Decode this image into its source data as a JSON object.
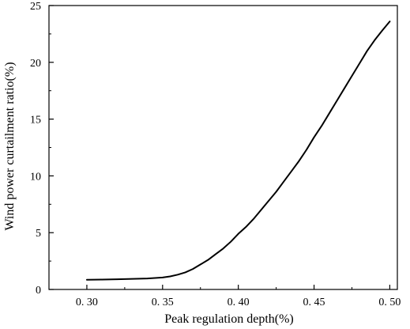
{
  "chart_data": {
    "type": "line",
    "title": "",
    "xlabel": "Peak regulation depth(%)",
    "ylabel": "Wind power curtailment ratio(%)",
    "xlim": [
      0.275,
      0.505
    ],
    "ylim": [
      0,
      25
    ],
    "xticks": [
      0.3,
      0.35,
      0.4,
      0.45,
      0.5
    ],
    "xtick_labels": [
      "0. 30",
      "0. 35",
      "0. 40",
      "0. 45",
      "0. 50"
    ],
    "yticks": [
      0,
      5,
      10,
      15,
      20,
      25
    ],
    "ytick_labels": [
      "0",
      "5",
      "10",
      "15",
      "20",
      "25"
    ],
    "grid": false,
    "legend": "none",
    "series": [
      {
        "color": "#000000",
        "x": [
          0.3,
          0.31,
          0.32,
          0.33,
          0.34,
          0.35,
          0.355,
          0.36,
          0.365,
          0.37,
          0.375,
          0.38,
          0.385,
          0.39,
          0.395,
          0.4,
          0.405,
          0.41,
          0.415,
          0.42,
          0.425,
          0.43,
          0.435,
          0.44,
          0.445,
          0.45,
          0.455,
          0.46,
          0.465,
          0.47,
          0.475,
          0.48,
          0.485,
          0.49,
          0.495,
          0.5
        ],
        "y": [
          0.85,
          0.87,
          0.9,
          0.93,
          0.97,
          1.05,
          1.15,
          1.3,
          1.5,
          1.8,
          2.2,
          2.6,
          3.1,
          3.6,
          4.2,
          4.9,
          5.5,
          6.2,
          7.0,
          7.8,
          8.6,
          9.5,
          10.4,
          11.3,
          12.3,
          13.4,
          14.4,
          15.5,
          16.6,
          17.7,
          18.8,
          19.9,
          21.0,
          21.95,
          22.8,
          23.6
        ]
      }
    ]
  }
}
